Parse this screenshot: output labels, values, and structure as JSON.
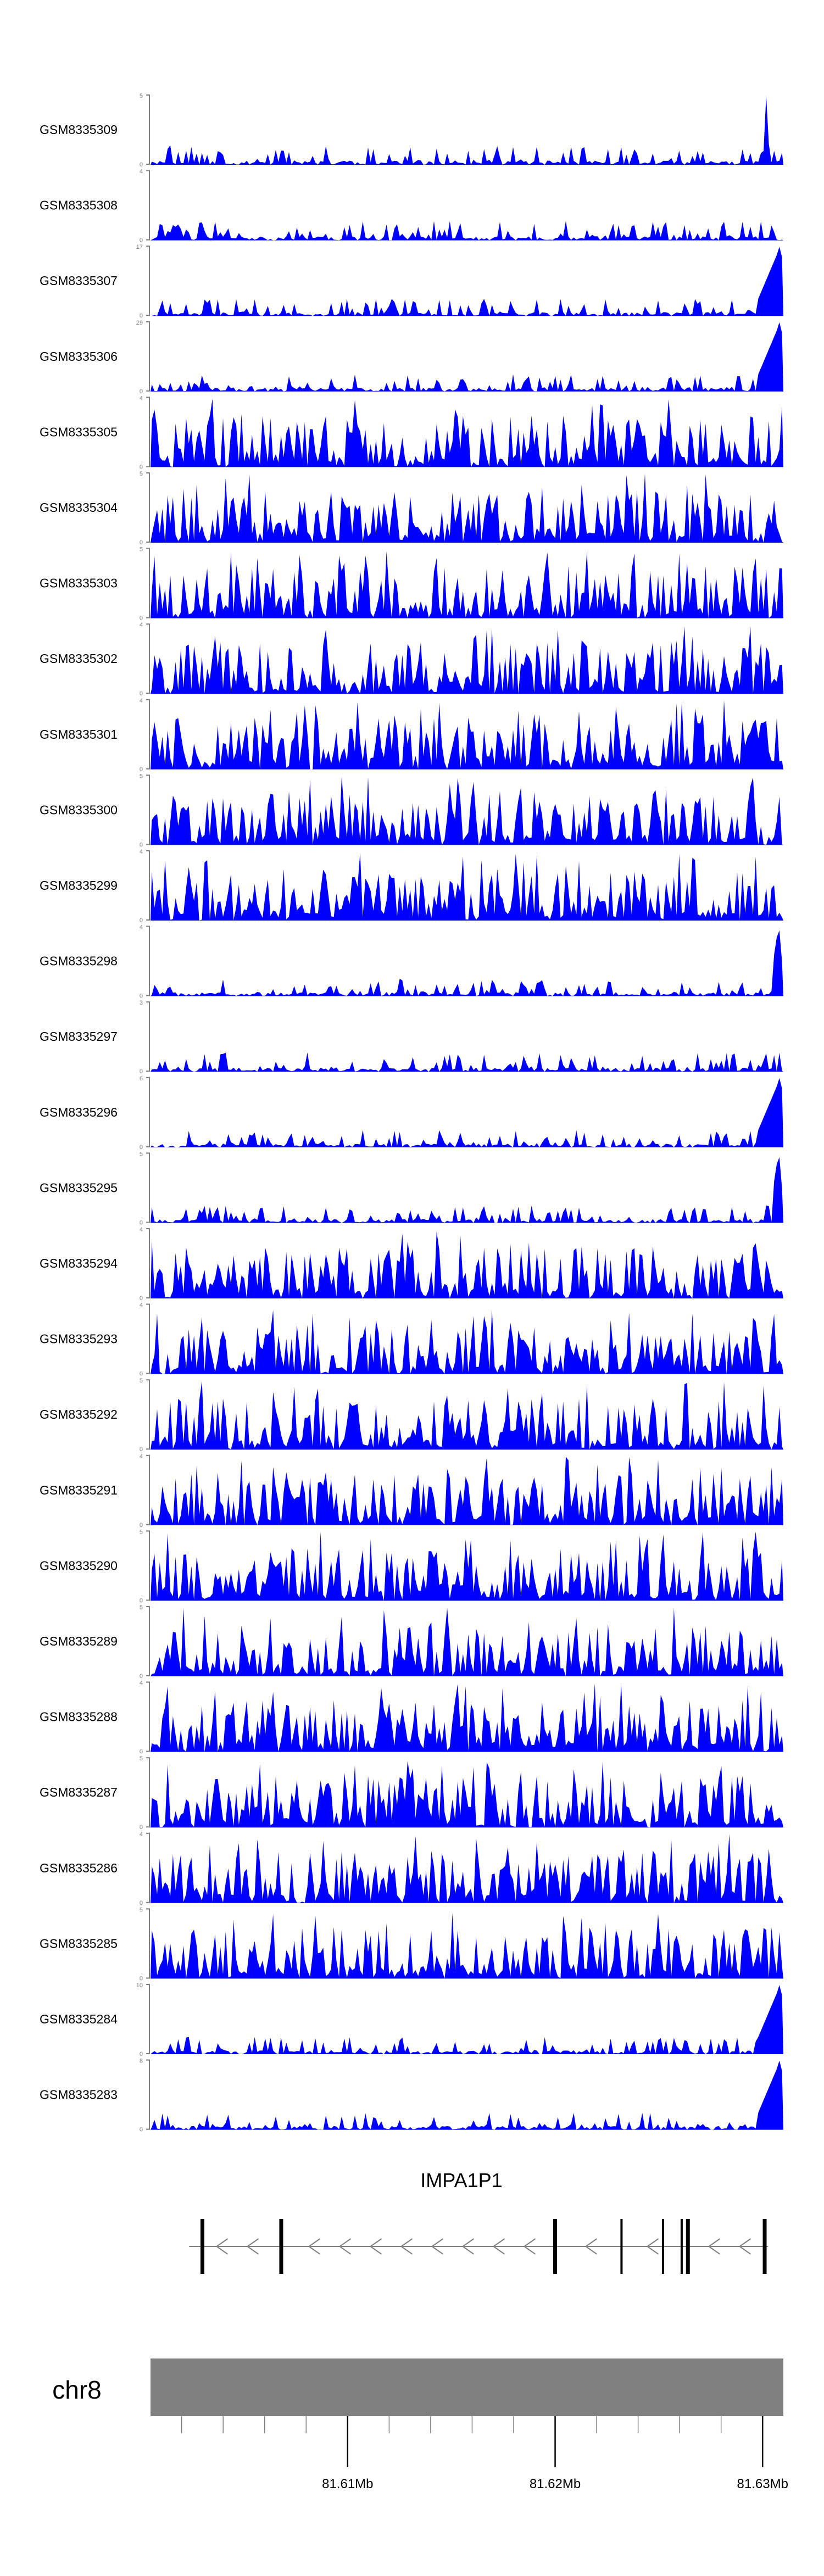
{
  "chart_data": {
    "type": "area",
    "series_color": "#0000ff",
    "axis_color": "#7f7f7f",
    "tracks": [
      {
        "name": "GSM8335309",
        "ymax": "5",
        "ymin": "0",
        "seed": 9,
        "peak": "right-spike",
        "sparse": true
      },
      {
        "name": "GSM8335308",
        "ymax": "4",
        "ymin": "0",
        "seed": 8,
        "peak": "none",
        "sparse": true
      },
      {
        "name": "GSM8335307",
        "ymax": "17",
        "ymin": "0",
        "seed": 7,
        "peak": "right-high",
        "sparse": true
      },
      {
        "name": "GSM8335306",
        "ymax": "29",
        "ymin": "0",
        "seed": 6,
        "peak": "right-high",
        "sparse": true
      },
      {
        "name": "GSM8335305",
        "ymax": "4",
        "ymin": "0",
        "seed": 5,
        "peak": "none",
        "sparse": false
      },
      {
        "name": "GSM8335304",
        "ymax": "5",
        "ymin": "0",
        "seed": 4,
        "peak": "none",
        "sparse": false
      },
      {
        "name": "GSM8335303",
        "ymax": "5",
        "ymin": "0",
        "seed": 3,
        "peak": "none",
        "sparse": false
      },
      {
        "name": "GSM8335302",
        "ymax": "4",
        "ymin": "0",
        "seed": 2,
        "peak": "none",
        "sparse": false
      },
      {
        "name": "GSM8335301",
        "ymax": "4",
        "ymin": "0",
        "seed": 1,
        "peak": "none",
        "sparse": false
      },
      {
        "name": "GSM8335300",
        "ymax": "5",
        "ymin": "0",
        "seed": 30,
        "peak": "none",
        "sparse": false
      },
      {
        "name": "GSM8335299",
        "ymax": "4",
        "ymin": "0",
        "seed": 29,
        "peak": "none",
        "sparse": false
      },
      {
        "name": "GSM8335298",
        "ymax": "4",
        "ymin": "0",
        "seed": 28,
        "peak": "right-mid",
        "sparse": true
      },
      {
        "name": "GSM8335297",
        "ymax": "3",
        "ymin": "0",
        "seed": 27,
        "peak": "none",
        "sparse": true
      },
      {
        "name": "GSM8335296",
        "ymax": "6",
        "ymin": "0",
        "seed": 26,
        "peak": "right-high",
        "sparse": true
      },
      {
        "name": "GSM8335295",
        "ymax": "5",
        "ymin": "0",
        "seed": 25,
        "peak": "right-mid",
        "sparse": true
      },
      {
        "name": "GSM8335294",
        "ymax": "4",
        "ymin": "0",
        "seed": 24,
        "peak": "none",
        "sparse": false
      },
      {
        "name": "GSM8335293",
        "ymax": "4",
        "ymin": "0",
        "seed": 23,
        "peak": "none",
        "sparse": false
      },
      {
        "name": "GSM8335292",
        "ymax": "5",
        "ymin": "0",
        "seed": 22,
        "peak": "none",
        "sparse": false
      },
      {
        "name": "GSM8335291",
        "ymax": "4",
        "ymin": "0",
        "seed": 21,
        "peak": "none",
        "sparse": false
      },
      {
        "name": "GSM8335290",
        "ymax": "5",
        "ymin": "0",
        "seed": 20,
        "peak": "none",
        "sparse": false
      },
      {
        "name": "GSM8335289",
        "ymax": "5",
        "ymin": "0",
        "seed": 19,
        "peak": "none",
        "sparse": false
      },
      {
        "name": "GSM8335288",
        "ymax": "4",
        "ymin": "0",
        "seed": 18,
        "peak": "none",
        "sparse": false
      },
      {
        "name": "GSM8335287",
        "ymax": "5",
        "ymin": "0",
        "seed": 17,
        "peak": "none",
        "sparse": false
      },
      {
        "name": "GSM8335286",
        "ymax": "4",
        "ymin": "0",
        "seed": 16,
        "peak": "none",
        "sparse": false
      },
      {
        "name": "GSM8335285",
        "ymax": "5",
        "ymin": "0",
        "seed": 15,
        "peak": "none",
        "sparse": false
      },
      {
        "name": "GSM8335284",
        "ymax": "10",
        "ymin": "0",
        "seed": 14,
        "peak": "right-high",
        "sparse": true
      },
      {
        "name": "GSM8335283",
        "ymax": "8",
        "ymin": "0",
        "seed": 13,
        "peak": "right-high",
        "sparse": true
      }
    ],
    "gene": {
      "name": "IMPA1P1",
      "strand": "-",
      "exon_positions_mb": [
        81.603,
        81.6068,
        81.62,
        81.6232,
        81.6252,
        81.6261,
        81.6264,
        81.6301
      ]
    },
    "chromosome": {
      "name": "chr8",
      "band_color": "#808080"
    },
    "x_axis": {
      "range_mb": [
        81.6005,
        81.631
      ],
      "major_ticks_mb": [
        81.61,
        81.62,
        81.63
      ],
      "major_labels": [
        "81.61Mb",
        "81.62Mb",
        "81.63Mb"
      ],
      "minor_tick_step_mb": 0.002
    }
  }
}
